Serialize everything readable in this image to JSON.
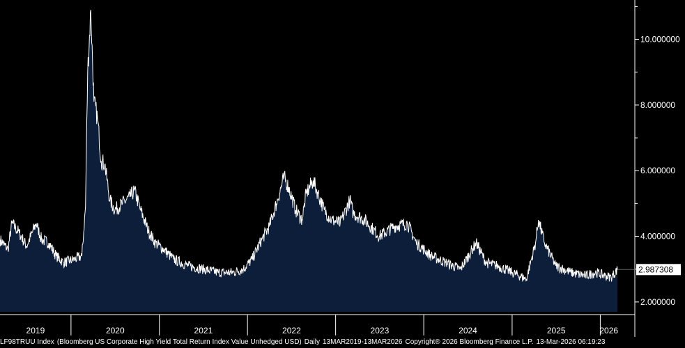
{
  "chart_data": {
    "type": "area",
    "ylim": [
      1.7,
      11.2
    ],
    "y_ticks": [
      2,
      4,
      6,
      8,
      10
    ],
    "y_tick_labels": [
      "2.000000",
      "4.000000",
      "6.000000",
      "8.000000",
      "10.000000"
    ],
    "x_tick_labels": [
      "2019",
      "2020",
      "2021",
      "2022",
      "2023",
      "2024",
      "2025",
      "2026"
    ],
    "last_value_label": "2.987308",
    "grid": false,
    "series": [
      {
        "x": [
          "2019-03-13",
          "2019-04-15",
          "2019-05-01",
          "2019-06-01",
          "2019-07-01",
          "2019-08-10",
          "2019-09-01",
          "2019-10-01",
          "2019-11-01",
          "2019-12-01",
          "2020-01-15",
          "2020-02-15",
          "2020-03-01",
          "2020-03-10",
          "2020-03-23",
          "2020-04-05",
          "2020-04-20",
          "2020-05-05",
          "2020-05-20",
          "2020-06-10",
          "2020-07-01",
          "2020-08-01",
          "2020-09-01",
          "2020-09-20",
          "2020-10-15",
          "2020-11-15",
          "2020-12-15",
          "2021-01-20",
          "2021-03-01",
          "2021-05-01",
          "2021-07-01",
          "2021-09-01",
          "2021-11-01",
          "2021-12-15",
          "2022-01-20",
          "2022-03-01",
          "2022-04-01",
          "2022-05-01",
          "2022-06-01",
          "2022-06-20",
          "2022-07-20",
          "2022-08-15",
          "2022-09-01",
          "2022-09-30",
          "2022-10-20",
          "2022-11-15",
          "2022-12-15",
          "2023-01-20",
          "2023-03-01",
          "2023-03-15",
          "2023-05-01",
          "2023-07-01",
          "2023-09-01",
          "2023-10-25",
          "2023-12-01",
          "2024-02-01",
          "2024-04-01",
          "2024-06-01",
          "2024-08-05",
          "2024-09-15",
          "2024-11-01",
          "2025-01-01",
          "2025-03-01",
          "2025-04-08",
          "2025-04-20",
          "2025-05-15",
          "2025-07-01",
          "2025-09-01",
          "2025-11-01",
          "2025-12-15",
          "2026-01-20",
          "2026-02-15",
          "2026-03-13"
        ],
        "values": [
          3.9,
          3.6,
          4.4,
          4.1,
          3.7,
          4.4,
          3.9,
          3.8,
          3.4,
          3.2,
          3.3,
          3.4,
          4.9,
          9.0,
          10.9,
          8.1,
          7.6,
          6.3,
          6.2,
          5.1,
          4.8,
          5.0,
          5.2,
          5.4,
          4.8,
          4.2,
          3.8,
          3.6,
          3.3,
          3.1,
          3.0,
          2.9,
          2.9,
          3.0,
          3.3,
          3.9,
          4.3,
          5.0,
          5.8,
          5.5,
          4.8,
          4.5,
          5.3,
          5.7,
          5.3,
          4.8,
          4.5,
          4.4,
          5.1,
          4.7,
          4.5,
          4.0,
          4.3,
          4.4,
          3.8,
          3.4,
          3.2,
          3.0,
          3.8,
          3.2,
          3.1,
          2.9,
          2.7,
          3.8,
          4.5,
          3.8,
          3.1,
          2.9,
          2.8,
          2.9,
          2.8,
          2.75,
          2.987308
        ]
      }
    ],
    "colors": {
      "area": "#0c1e3a",
      "line": "#ffffff",
      "axis": "#ffffff",
      "background": "#000000",
      "label_box": "#ffffff"
    }
  },
  "footer": {
    "ticker": "LF98TRUU Index",
    "description": "(Bloomberg US Corporate High Yield Total Return Index Value Unhedged USD)",
    "frequency": "Daily",
    "range": "13MAR2019-13MAR2026",
    "copyright": "Copyright® 2026 Bloomberg Finance L.P.",
    "timestamp": "13-Mar-2026 06:19:23"
  }
}
